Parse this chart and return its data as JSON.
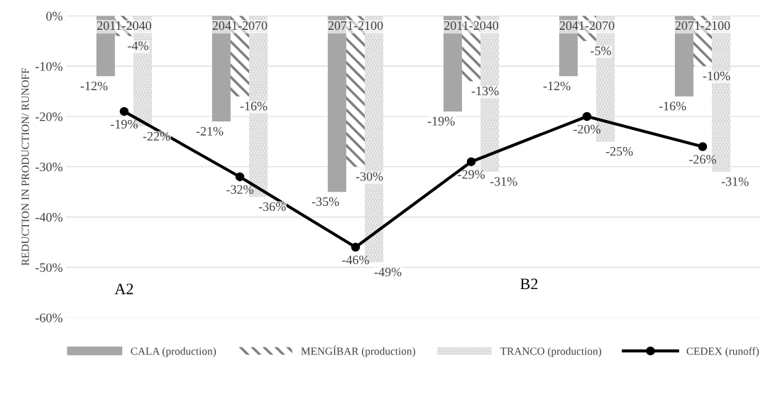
{
  "chart_data": {
    "type": "bar",
    "ylabel": "REDUCTION IN PRODUCTION/ RUNOFF",
    "categories": [
      "2011-2040",
      "2041-2070",
      "2071-2100",
      "2011-2040",
      "2041-2070",
      "2071-2100"
    ],
    "series": [
      {
        "name": "CALA (production)",
        "color": "#a6a6a6",
        "values": [
          -12,
          -21,
          -35,
          -19,
          -12,
          -16
        ],
        "value_labels": [
          "-12%",
          "-21%",
          "-35%",
          "-19%",
          "-12%",
          "-16%"
        ]
      },
      {
        "name": "MENGÍBAR (production)",
        "color": "#7f7f7f",
        "values": [
          -4,
          -16,
          -30,
          -13,
          -5,
          -10
        ],
        "value_labels": [
          "-4%",
          "-16%",
          "-30%",
          "-13%",
          "-5%",
          "-10%"
        ]
      },
      {
        "name": "TRANCO (production)",
        "color": "#c8c8c8",
        "values": [
          -22,
          -36,
          -49,
          -31,
          -25,
          -31
        ],
        "value_labels": [
          "-22%",
          "-36%",
          "-49%",
          "-31%",
          "-25%",
          "-31%"
        ]
      },
      {
        "name": "CEDEX (runoff)",
        "type": "line",
        "color": "#000000",
        "marker": "circle",
        "values": [
          -19,
          -32,
          -46,
          -29,
          -20,
          -26
        ],
        "value_labels": [
          "-19%",
          "-32%",
          "-46%",
          "-29%",
          "-20%",
          "-26%"
        ]
      }
    ],
    "ylim": [
      -60,
      0
    ],
    "yticks": [
      {
        "value": 0,
        "label": "0%"
      },
      {
        "value": -10,
        "label": "-10%"
      },
      {
        "value": -20,
        "label": "-20%"
      },
      {
        "value": -30,
        "label": "-30%"
      },
      {
        "value": -40,
        "label": "-40%"
      },
      {
        "value": -50,
        "label": "-50%"
      },
      {
        "value": -60,
        "label": "-60%"
      }
    ],
    "annotations": [
      "A2",
      "B2"
    ],
    "grid": "y",
    "legend": "bottom"
  }
}
